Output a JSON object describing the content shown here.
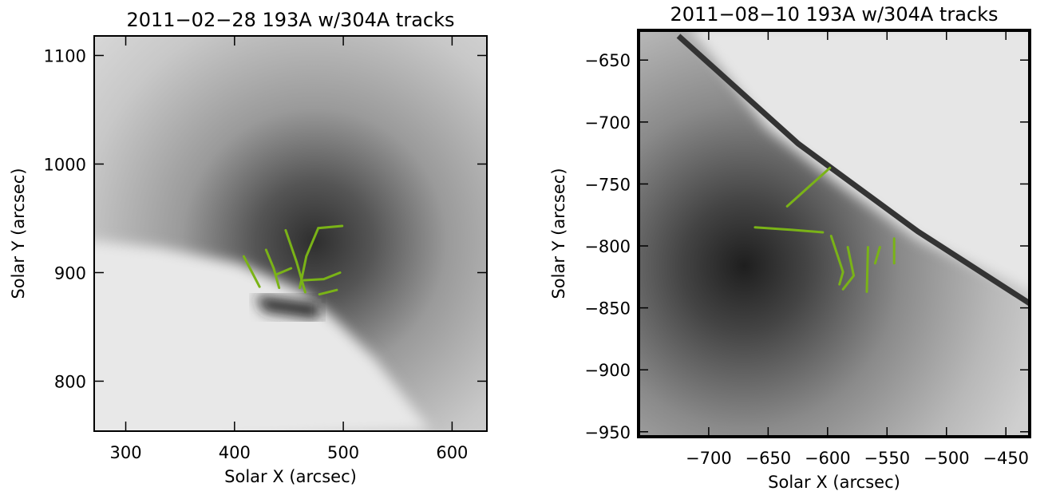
{
  "chart_data": [
    {
      "type": "line",
      "title": "2011−02−28 193A w/304A tracks",
      "x_label": "Solar X (arcsec)",
      "y_label": "Solar Y (arcsec)",
      "xlim": [
        271,
        632
      ],
      "ylim": [
        754,
        1118
      ],
      "xticks": [
        300,
        400,
        500,
        600
      ],
      "yticks": [
        800,
        900,
        1000,
        1100
      ],
      "color": "#7ab317",
      "series": [
        {
          "x": [
            408.5,
            423
          ],
          "y": [
            915,
            887
          ]
        },
        {
          "x": [
            429,
            436,
            441
          ],
          "y": [
            921,
            904,
            886
          ]
        },
        {
          "x": [
            447,
            457,
            465
          ],
          "y": [
            939,
            910,
            882
          ]
        },
        {
          "x": [
            460,
            466,
            477,
            499
          ],
          "y": [
            886,
            915,
            941,
            943
          ]
        },
        {
          "x": [
            464,
            482,
            497
          ],
          "y": [
            893,
            894,
            900
          ]
        },
        {
          "x": [
            478,
            494
          ],
          "y": [
            880,
            884
          ]
        },
        {
          "x": [
            438,
            452
          ],
          "y": [
            898,
            904
          ]
        }
      ]
    },
    {
      "type": "line",
      "title": "2011−08−10 193A w/304A tracks",
      "x_label": "Solar X (arcsec)",
      "y_label": "Solar Y (arcsec)",
      "xlim": [
        -759,
        -430
      ],
      "ylim": [
        -954,
        -626
      ],
      "xticks": [
        {
          "value": -700,
          "label": "−700"
        },
        {
          "value": -650,
          "label": "−650"
        },
        {
          "value": -600,
          "label": "−600"
        },
        {
          "value": -550,
          "label": "−550"
        },
        {
          "value": -500,
          "label": "−500"
        },
        {
          "value": -450,
          "label": "−450"
        }
      ],
      "yticks": [
        {
          "value": -950,
          "label": "−950"
        },
        {
          "value": -900,
          "label": "−900"
        },
        {
          "value": -850,
          "label": "−850"
        },
        {
          "value": -800,
          "label": "−800"
        },
        {
          "value": -750,
          "label": "−750"
        },
        {
          "value": -700,
          "label": "−700"
        },
        {
          "value": -650,
          "label": "−650"
        }
      ],
      "color": "#7ab317",
      "series": [
        {
          "x": [
            -634,
            -598
          ],
          "y": [
            -768,
            -737
          ]
        },
        {
          "x": [
            -661,
            -630,
            -604
          ],
          "y": [
            -785,
            -787,
            -789
          ]
        },
        {
          "x": [
            -597,
            -587,
            -590
          ],
          "y": [
            -792,
            -821,
            -831
          ]
        },
        {
          "x": [
            -583,
            -578,
            -587
          ],
          "y": [
            -801,
            -824,
            -835
          ]
        },
        {
          "x": [
            -566,
            -567
          ],
          "y": [
            -801,
            -837
          ]
        },
        {
          "x": [
            -544,
            -544
          ],
          "y": [
            -794,
            -814
          ]
        },
        {
          "x": [
            -556,
            -560
          ],
          "y": [
            -801,
            -814
          ]
        }
      ]
    }
  ]
}
